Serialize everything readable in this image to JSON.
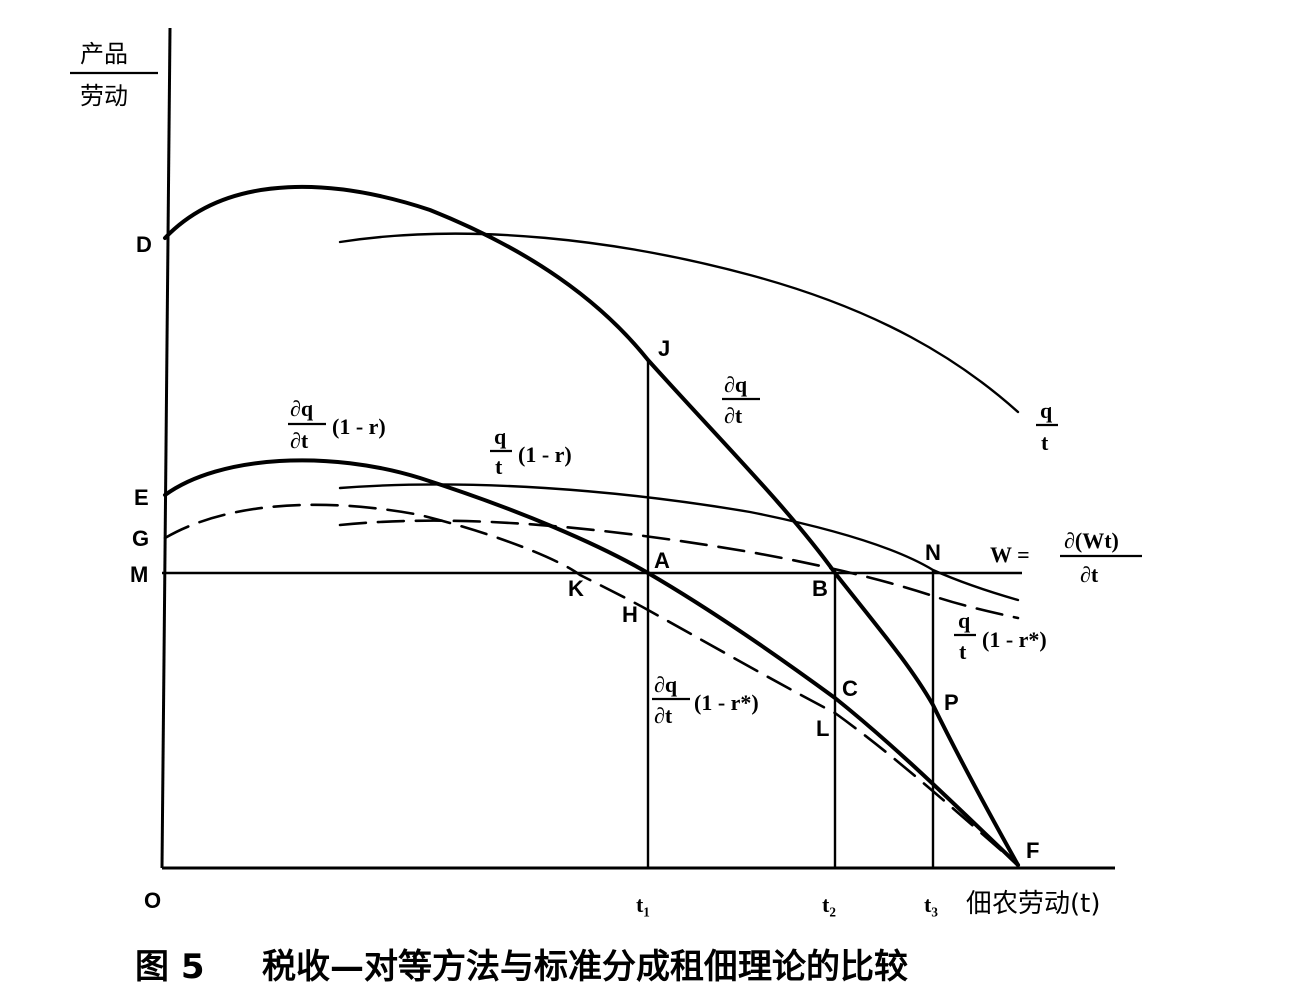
{
  "axes": {
    "y_label_top": "产品",
    "y_label_bottom": "劳动",
    "x_label": "佃农劳动(t)",
    "origin": "O"
  },
  "x_ticks": {
    "t1": "t₁",
    "t2": "t₂",
    "t3": "t₃"
  },
  "points": {
    "D": "D",
    "E": "E",
    "G": "G",
    "M": "M",
    "J": "J",
    "A": "A",
    "B": "B",
    "N": "N",
    "K": "K",
    "H": "H",
    "C": "C",
    "L": "L",
    "P": "P",
    "F": "F"
  },
  "curve_labels": {
    "marginal_num": "∂q",
    "marginal_den": "∂t",
    "average_num": "q",
    "average_den": "t",
    "marginal_share_num": "∂q",
    "marginal_share_den": "∂t",
    "marginal_share_tail": "(1 - r)",
    "average_share_num": "q",
    "average_share_den": "t",
    "average_share_tail": "(1 - r)",
    "tax_avg_num": "q",
    "tax_avg_den": "t",
    "tax_avg_tail": "(1 - r*)",
    "tax_marg_num": "∂q",
    "tax_marg_den": "∂t",
    "tax_marg_tail": "(1 - r*)",
    "wage_lhs": "W =",
    "wage_num": "∂(Wt)",
    "wage_den": "∂t"
  },
  "caption": {
    "figure_no": "图 5",
    "title": "税收—对等方法与标准分成租佃理论的比较"
  }
}
